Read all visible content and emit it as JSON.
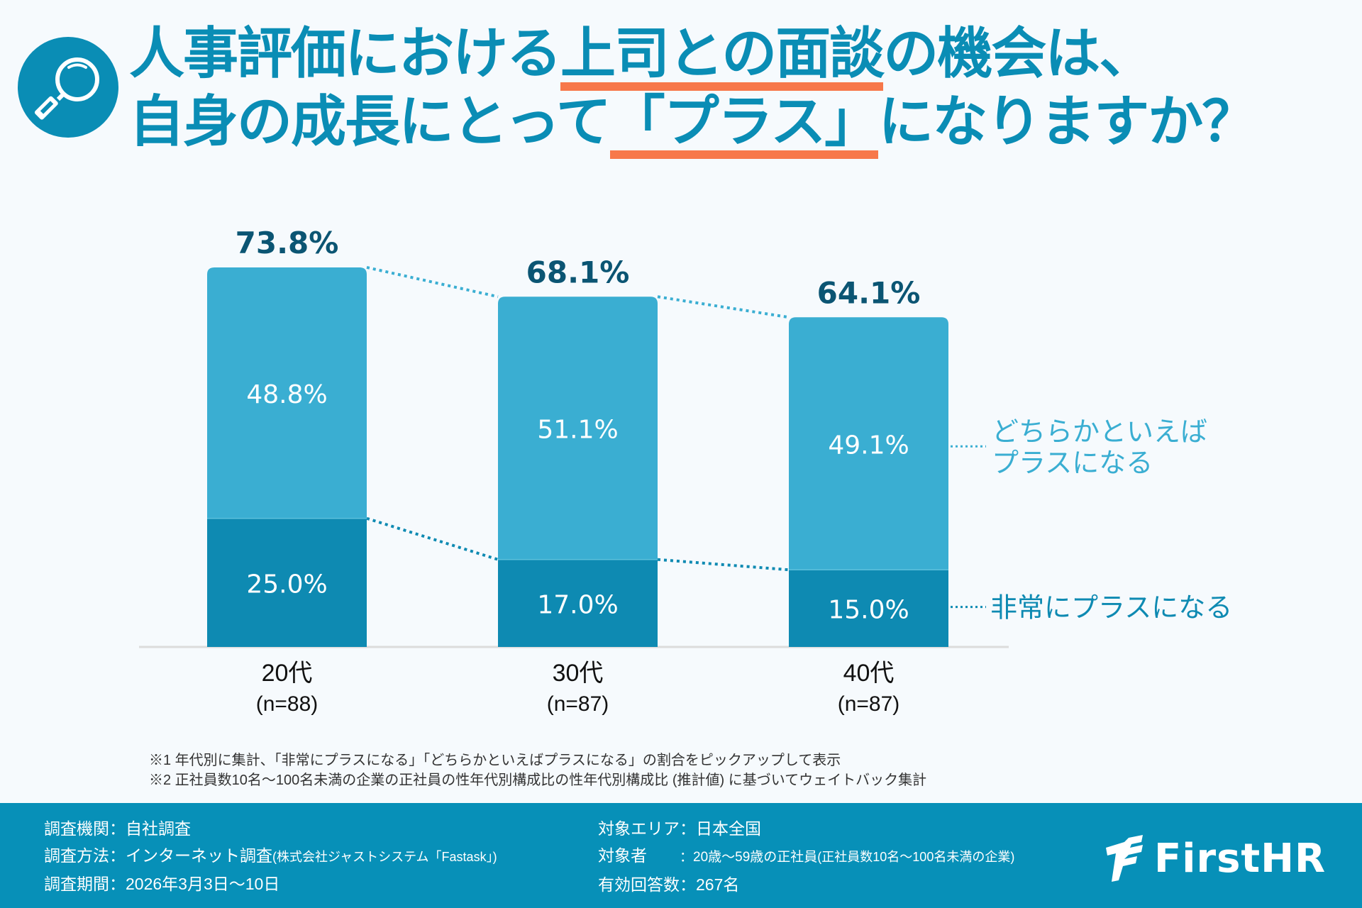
{
  "header": {
    "icon": "magnifier-icon",
    "title_line1_before": "人事評価における",
    "title_line1_highlight": "上司との面談",
    "title_line1_after": "の機会は、",
    "title_line2_before": "自身の成長にとって",
    "title_line2_highlight": "「プラス」",
    "title_line2_after": "になりますか？"
  },
  "colors": {
    "brand": "#0a8db5",
    "highlight": "#f7784a",
    "light_bar": "#3aaed2",
    "dark_bar": "#0e8ab2",
    "total_label": "#0b5573",
    "footer_bg": "#0790b8"
  },
  "chart_data": {
    "type": "bar",
    "stacked": true,
    "title": "人事評価における上司との面談の機会は、自身の成長にとって「プラス」になりますか？",
    "categories": [
      "20代",
      "30代",
      "40代"
    ],
    "category_sublabels": [
      "(n=88)",
      "(n=87)",
      "(n=87)"
    ],
    "series": [
      {
        "name": "非常にプラスになる",
        "values": [
          25.0,
          17.0,
          15.0
        ],
        "labels": [
          "25.0%",
          "17.0%",
          "15.0%"
        ]
      },
      {
        "name": "どちらかといえばプラスになる",
        "values": [
          48.8,
          51.1,
          49.1
        ],
        "labels": [
          "48.8%",
          "51.1%",
          "49.1%"
        ]
      }
    ],
    "totals": [
      73.8,
      68.1,
      64.1
    ],
    "total_labels": [
      "73.8%",
      "68.1%",
      "64.1%"
    ],
    "legend": {
      "placement": "right",
      "entries": [
        {
          "line1": "どちらかといえば",
          "line2": "プラスになる"
        },
        {
          "line1": "非常にプラスになる"
        }
      ]
    },
    "ylim": [
      0,
      100
    ],
    "grid": false
  },
  "notes": [
    "※1  年代別に集計、「非常にプラスになる」「どちらかといえばプラスになる」の割合をピックアップして表示",
    "※2  正社員数10名～100名未満の企業の正社員の性年代別構成比の性年代別構成比 (推計値) に基づいてウェイトバック集計"
  ],
  "footer": {
    "left": [
      {
        "label": "調査機関：",
        "value": "自社調査",
        "small": ""
      },
      {
        "label": "調査方法：",
        "value": "インターネット調査",
        "small": "(株式会社ジャストシステム「Fastask」)"
      },
      {
        "label": "調査期間：",
        "value": "2026年3月3日～10日",
        "small": ""
      }
    ],
    "right": [
      {
        "label": "対象エリア：",
        "value": "日本全国",
        "small": ""
      },
      {
        "label": "対象者　　",
        "value": "：20歳～59歳の正社員",
        "small": "(正社員数10名～100名未満の企業)"
      },
      {
        "label": "有効回答数：",
        "value": "267名",
        "small": ""
      }
    ],
    "logo_text": "FirstHR"
  }
}
